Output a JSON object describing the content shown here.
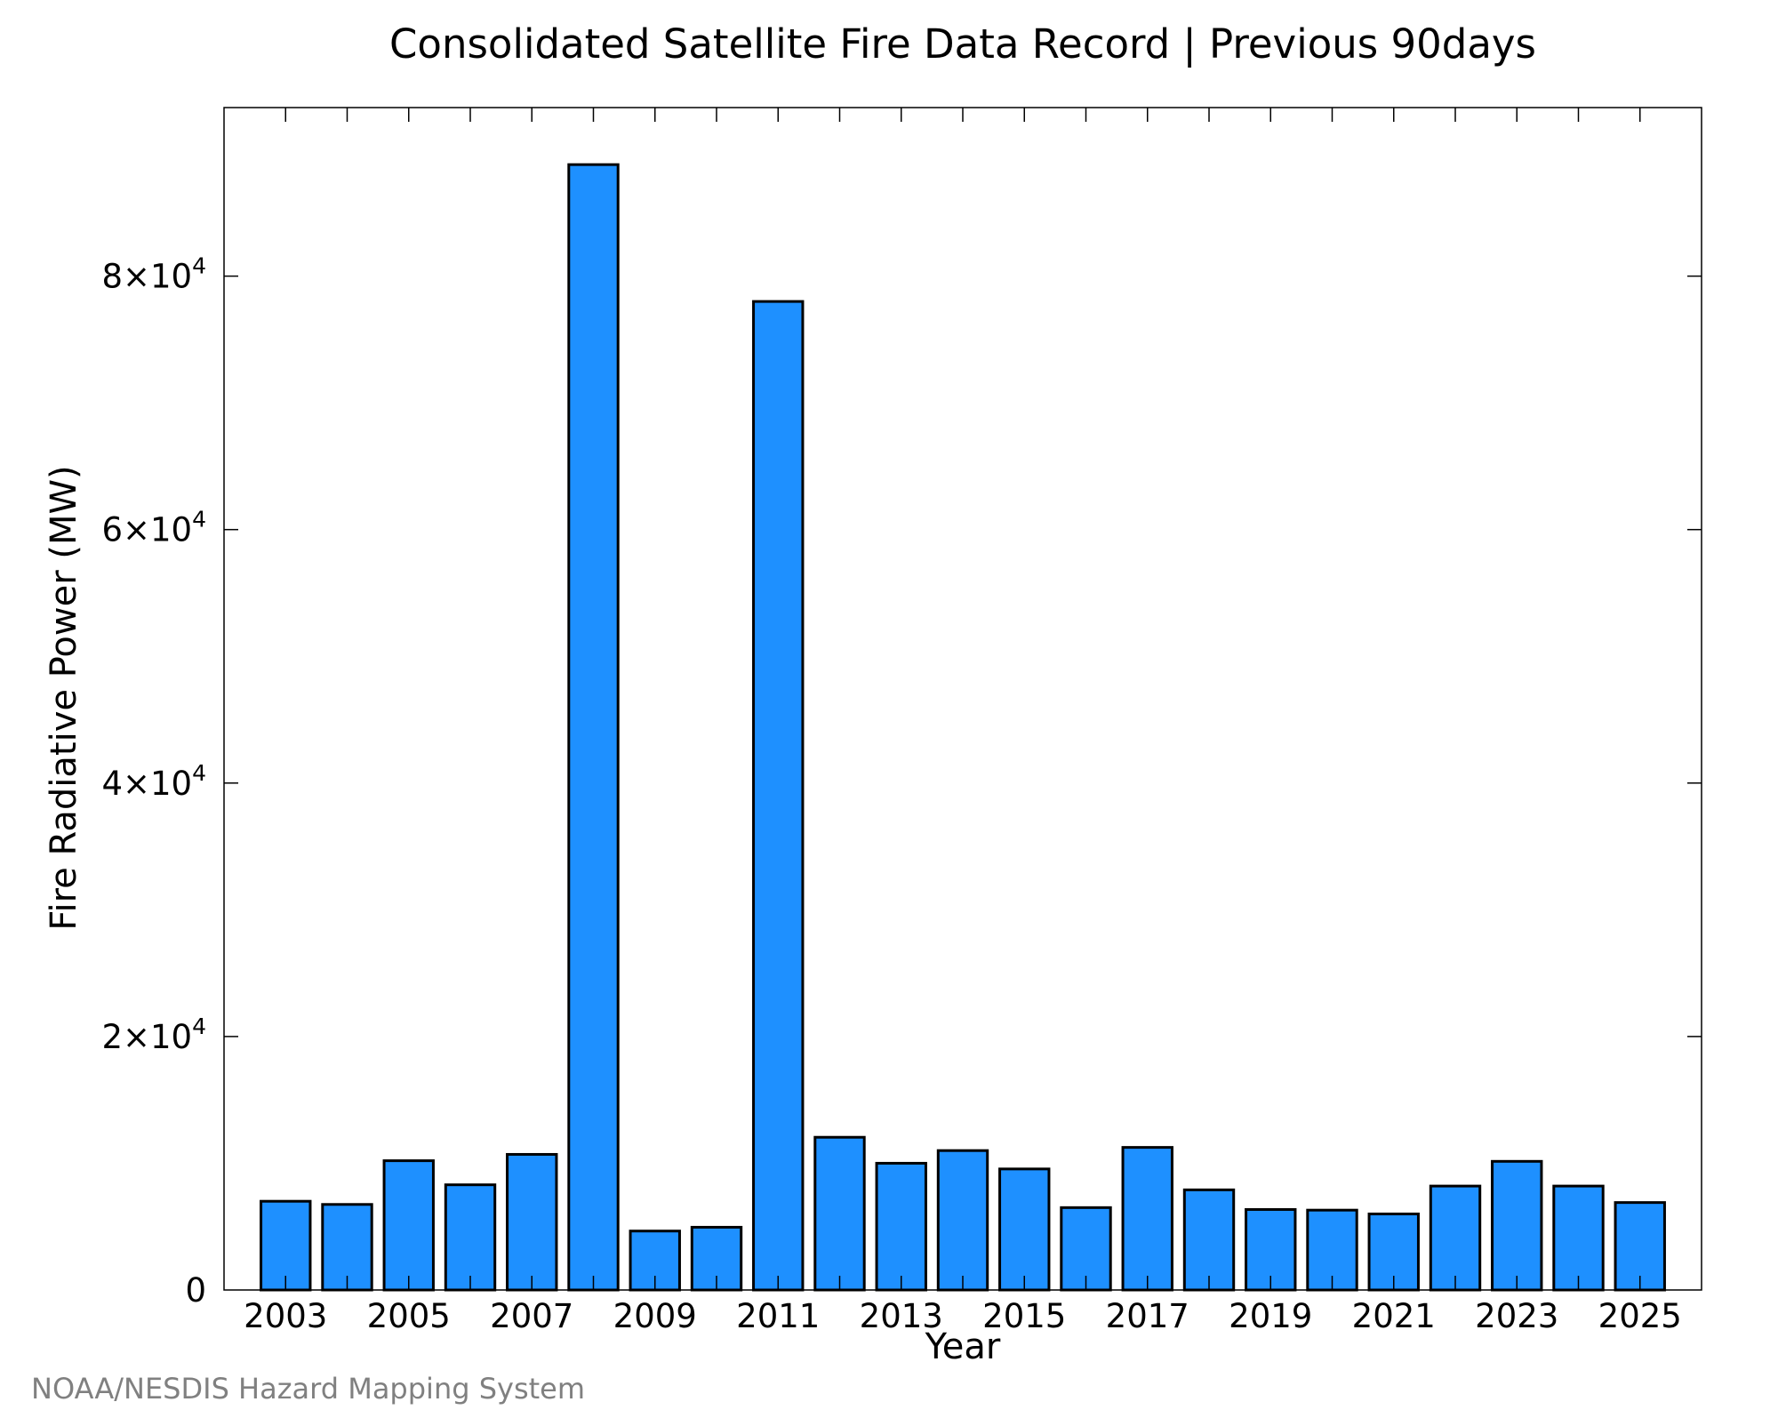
{
  "chart_data": {
    "type": "bar",
    "title": "Consolidated Satellite Fire Data Record | Previous 90days",
    "xlabel": "Year",
    "ylabel": "Fire Radiative Power (MW)",
    "categories": [
      "2003",
      "2004",
      "2005",
      "2006",
      "2007",
      "2008",
      "2009",
      "2010",
      "2011",
      "2012",
      "2013",
      "2014",
      "2015",
      "2016",
      "2017",
      "2018",
      "2019",
      "2020",
      "2021",
      "2022",
      "2023",
      "2024",
      "2025"
    ],
    "values": [
      7000,
      6750,
      10200,
      8300,
      10700,
      88800,
      4650,
      4950,
      78000,
      12050,
      10000,
      11000,
      9550,
      6500,
      11250,
      7900,
      6350,
      6300,
      6000,
      8200,
      10150,
      8200,
      6900
    ],
    "xtick_labels": [
      "2003",
      "2005",
      "2007",
      "2009",
      "2011",
      "2013",
      "2015",
      "2017",
      "2019",
      "2021",
      "2023",
      "2025"
    ],
    "ytick_values": [
      0,
      20000,
      40000,
      60000,
      80000
    ],
    "ytick_labels": [
      {
        "base": "0",
        "exp": ""
      },
      {
        "base": "2×10",
        "exp": "4"
      },
      {
        "base": "4×10",
        "exp": "4"
      },
      {
        "base": "6×10",
        "exp": "4"
      },
      {
        "base": "8×10",
        "exp": "4"
      }
    ],
    "ylim": [
      0,
      93300
    ],
    "xlim": [
      2002,
      2026
    ],
    "grid": false,
    "legend": "none",
    "bar_color": "#1e90ff",
    "bar_edge_color": "#000000"
  },
  "footer": {
    "credit": "NOAA/NESDIS Hazard Mapping System"
  }
}
